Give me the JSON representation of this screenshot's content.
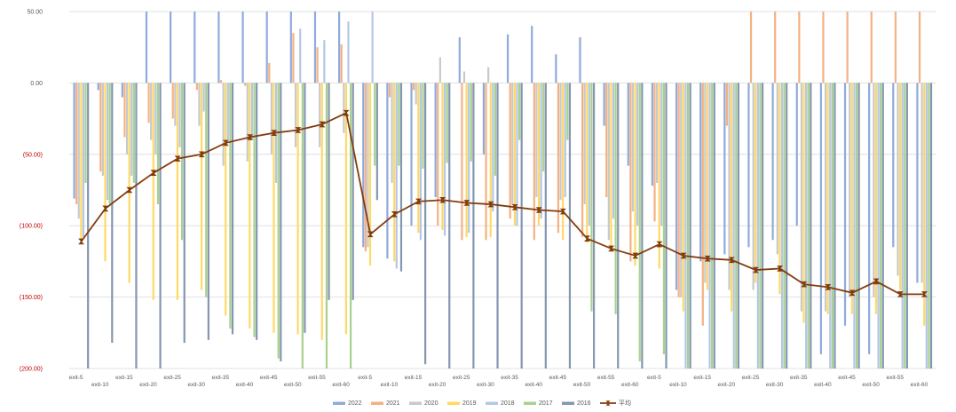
{
  "chart_data": {
    "type": "bar",
    "title": "",
    "xlabel": "",
    "ylabel": "",
    "ylim": [
      -200,
      50
    ],
    "yticks": [
      50,
      0,
      -50,
      -100,
      -150,
      -200
    ],
    "ytick_labels": [
      "50.00",
      "0.00",
      "(50.00)",
      "(100.00)",
      "(150.00)",
      "(200.00)"
    ],
    "grid": true,
    "legend_position": "bottom",
    "categories": [
      "exit-5",
      "exit-10",
      "exit-15",
      "exit-20",
      "exit-25",
      "exit-30",
      "exit-35",
      "exit-40",
      "exit-45",
      "exit-50",
      "exit-55",
      "exit-60",
      "exit-5",
      "exit-10",
      "exit-15",
      "exit-20",
      "exit-25",
      "exit-30",
      "exit-35",
      "exit-40",
      "exit-45",
      "exit-50",
      "exit-55",
      "exit-60",
      "exit-5",
      "exit-10",
      "exit-15",
      "exit-20",
      "exit-25",
      "exit-30",
      "exit-35",
      "exit-40",
      "exit-45",
      "exit-50",
      "exit-55",
      "exit-60"
    ],
    "series": [
      {
        "name": "2022",
        "color": "#8FAADC",
        "values": [
          -81,
          -5,
          -10,
          50,
          50,
          50,
          50,
          50,
          50,
          50,
          50,
          50,
          -115,
          -123,
          -100,
          -80,
          32,
          -50,
          34,
          40,
          20,
          32,
          -30,
          -58,
          -72,
          -145,
          -125,
          -120,
          -115,
          -110,
          -100,
          -190,
          -170,
          -190,
          -115,
          -140
        ]
      },
      {
        "name": "2021",
        "color": "#F4B183",
        "values": [
          -85,
          -62,
          -38,
          -28,
          -25,
          -5,
          2,
          -2,
          14,
          35,
          25,
          27,
          -118,
          -10,
          -5,
          -100,
          -110,
          -110,
          -95,
          -110,
          -105,
          -108,
          -80,
          -125,
          -97,
          -150,
          -170,
          -30,
          50,
          50,
          50,
          50,
          50,
          50,
          50,
          50
        ]
      },
      {
        "name": "2020",
        "color": "#C9C9C9",
        "values": [
          -95,
          -65,
          -50,
          -40,
          -30,
          -30,
          -58,
          -55,
          -50,
          -45,
          -45,
          -35,
          -115,
          -70,
          -15,
          18,
          8,
          11,
          -85,
          -80,
          -82,
          -85,
          -110,
          -90,
          -70,
          -150,
          -140,
          -145,
          -145,
          -120,
          -160,
          -160,
          -150,
          -150,
          -135,
          -140
        ]
      },
      {
        "name": "2019",
        "color": "#FFD966",
        "values": [
          -112,
          -125,
          -140,
          -152,
          -152,
          -145,
          -163,
          -172,
          -175,
          -176,
          -180,
          -176,
          -128,
          -125,
          -105,
          -103,
          -108,
          -108,
          -100,
          -100,
          -110,
          -112,
          -118,
          -128,
          -130,
          -160,
          -145,
          -160,
          -140,
          -148,
          -168,
          -162,
          -162,
          -162,
          -145,
          -170
        ]
      },
      {
        "name": "2018",
        "color": "#B4C7E7",
        "values": [
          -108,
          -82,
          -65,
          -50,
          -45,
          -20,
          -40,
          -40,
          -70,
          38,
          30,
          43,
          50,
          -130,
          -110,
          -107,
          -105,
          -90,
          -100,
          -95,
          -80,
          -100,
          -95,
          -100,
          -100,
          -200,
          -200,
          -200,
          -200,
          -200,
          -200,
          -200,
          -200,
          -200,
          -200,
          -200
        ]
      },
      {
        "name": "2017",
        "color": "#A9D18E",
        "values": [
          -70,
          -85,
          -70,
          -85,
          -110,
          -150,
          -172,
          -178,
          -193,
          -200,
          -200,
          -200,
          -58,
          -58,
          -60,
          -56,
          -55,
          -65,
          -40,
          -62,
          -40,
          -160,
          -162,
          -195,
          -190,
          -200,
          -200,
          -200,
          -200,
          -200,
          -200,
          -200,
          -200,
          -200,
          -200,
          -200
        ]
      },
      {
        "name": "2016",
        "color": "#8497B0",
        "values": [
          -200,
          -182,
          -200,
          -200,
          -182,
          -180,
          -176,
          -180,
          -195,
          -175,
          -152,
          -152,
          -82,
          -132,
          -197,
          -200,
          -200,
          -200,
          -200,
          -200,
          -200,
          -200,
          -200,
          -200,
          -200,
          -200,
          -200,
          -200,
          -200,
          -200,
          -200,
          -200,
          -200,
          -200,
          -200,
          -200
        ]
      }
    ],
    "line_series": {
      "name": "平均",
      "color": "#843C0C",
      "values": [
        -111,
        -88,
        -75,
        -63,
        -53,
        -50,
        -42,
        -38,
        -35,
        -33,
        -29,
        -21,
        -106,
        -92,
        -83,
        -82,
        -84,
        -85,
        -87,
        -89,
        -90,
        -109,
        -116,
        -121,
        -113,
        -121,
        -123,
        -124,
        -131,
        -130,
        -141,
        -143,
        -147,
        -139,
        -148,
        -148
      ]
    }
  }
}
